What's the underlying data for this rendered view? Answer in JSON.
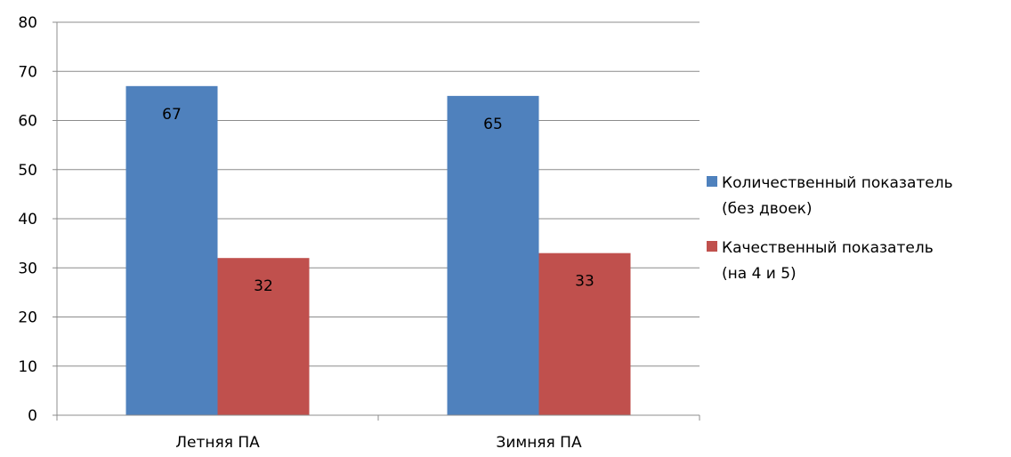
{
  "chart_data": {
    "type": "bar",
    "title": "",
    "xlabel": "",
    "ylabel": "",
    "categories": [
      "Летняя ПА",
      "Зимняя ПА"
    ],
    "series": [
      {
        "name_lines": [
          "Количественный показатель",
          "(без двоек)"
        ],
        "values": [
          67,
          65
        ],
        "color": "#4F81BD"
      },
      {
        "name_lines": [
          "Качественный показатель",
          "(на 4 и 5)"
        ],
        "values": [
          32,
          33
        ],
        "color": "#C0504D"
      }
    ],
    "ylim": [
      0,
      80
    ],
    "yticks": [
      0,
      10,
      20,
      30,
      40,
      50,
      60,
      70,
      80
    ],
    "grid": true,
    "legend_position": "right",
    "data_labels": true
  }
}
